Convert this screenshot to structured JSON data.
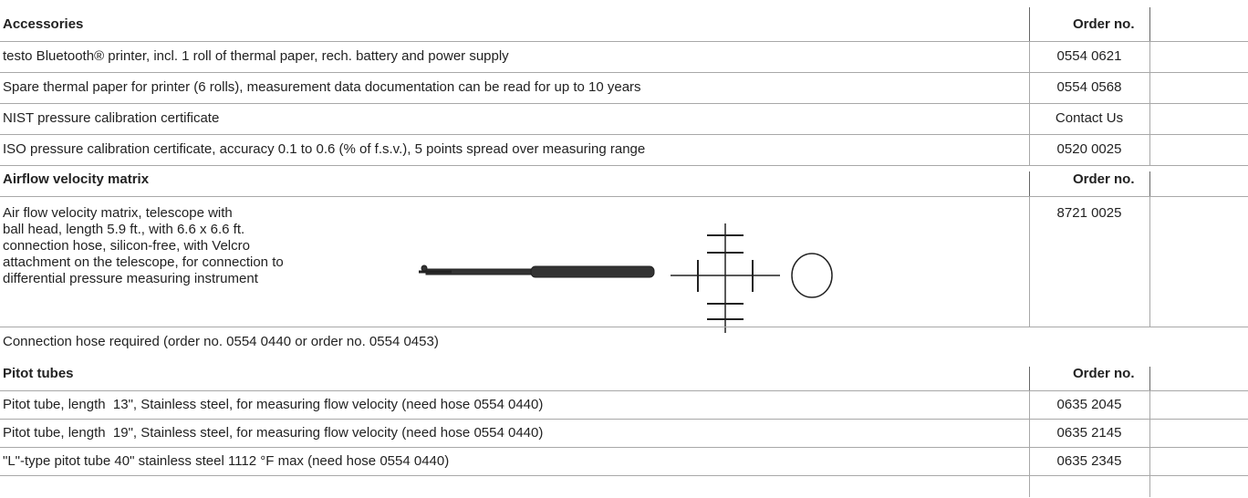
{
  "sections": [
    {
      "title": "Accessories",
      "order_header": "Order no.",
      "rows": [
        {
          "description": [
            "testo Bluetooth® printer, incl. 1 roll of thermal paper, rech. battery and power supply"
          ],
          "order_no": "0554 0621"
        },
        {
          "description": [
            "Spare thermal paper for printer (6 rolls), measurement data documentation can be read for up to 10 years"
          ],
          "order_no": "0554 0568"
        },
        {
          "description": [
            "NIST pressure calibration certificate"
          ],
          "order_no": "Contact Us"
        },
        {
          "description": [
            "ISO pressure calibration certificate, accuracy 0.1 to 0.6 (% of f.s.v.), 5 points spread over measuring range"
          ],
          "order_no": "0520 0025"
        }
      ]
    },
    {
      "title": "Airflow velocity matrix",
      "order_header": "Order no.",
      "rows": [
        {
          "description": [
            "Air flow velocity matrix, telescope with",
            "ball head, length 5.9 ft., with 6.6 x 6.6 ft.",
            "connection hose, silicon-free, with Velcro",
            "attachment on the telescope, for connection to",
            "differential pressure measuring instrument"
          ],
          "order_no": "8721 0025"
        }
      ],
      "note": "Connection hose required (order no. 0554 0440 or order no. 0554 0453)"
    },
    {
      "title": "Pitot tubes",
      "order_header": "Order no.",
      "rows": [
        {
          "description": [
            "Pitot tube, length  13\", Stainless steel, for measuring flow velocity (need hose 0554 0440)"
          ],
          "order_no": "0635 2045"
        },
        {
          "description": [
            "Pitot tube, length  19\", Stainless steel, for measuring flow velocity (need hose 0554 0440)"
          ],
          "order_no": "0635 2145"
        },
        {
          "description": [
            "\"L\"-type pitot tube 40\" stainless steel 1112 °F max (need hose 0554 0440)"
          ],
          "order_no": "0635 2345"
        }
      ]
    }
  ]
}
